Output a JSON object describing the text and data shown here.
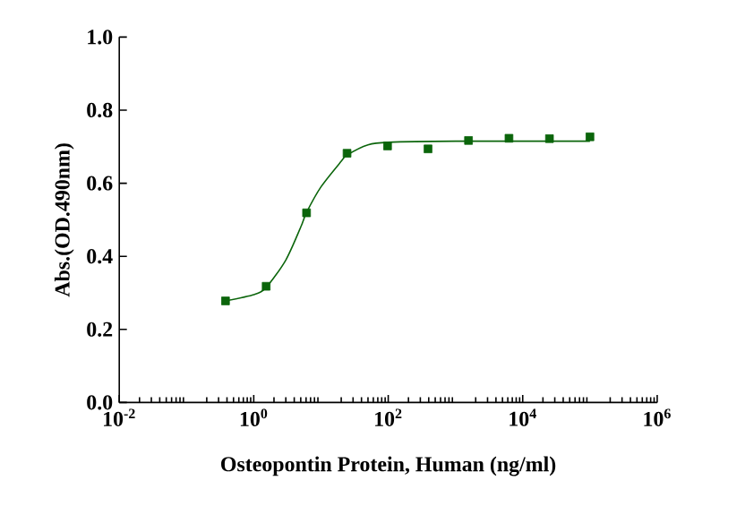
{
  "chart_data": {
    "type": "scatter",
    "xlabel": "Osteopontin Protein, Human (ng/ml)",
    "ylabel": "Abs.(OD.490nm)",
    "log": "x",
    "xlim": [
      0.01,
      1000000
    ],
    "ylim": [
      0,
      1.0
    ],
    "xticks": [
      {
        "value": 0.01,
        "label": "10$^{-2}$"
      },
      {
        "value": 1,
        "label": "10$^{0}$"
      },
      {
        "value": 100,
        "label": "10$^{2}$"
      },
      {
        "value": 10000,
        "label": "10$^{4}$"
      },
      {
        "value": 1000000,
        "label": "10$^{6}$"
      }
    ],
    "yticks": [
      {
        "value": 0,
        "label": "0.0"
      },
      {
        "value": 0.2,
        "label": "0.2"
      },
      {
        "value": 0.4,
        "label": "0.4"
      },
      {
        "value": 0.6,
        "label": "0.6"
      },
      {
        "value": 0.8,
        "label": "0.8"
      },
      {
        "value": 1.0,
        "label": "1.0"
      }
    ],
    "series": [
      {
        "marker": "square",
        "color": "#0b650b",
        "x": [
          0.38,
          1.53,
          6.1,
          24.4,
          97.7,
          390.6,
          1562.5,
          6250,
          25000,
          100000
        ],
        "values": [
          0.278,
          0.318,
          0.519,
          0.682,
          0.702,
          0.694,
          0.717,
          0.723,
          0.722,
          0.727
        ]
      },
      {
        "type": "line",
        "marker": "none",
        "line_style": "solid",
        "color": "#0b650b",
        "x": [
          0.38,
          1,
          1.53,
          3,
          5,
          6.1,
          10,
          20,
          24.4,
          50,
          100,
          1000,
          100000
        ],
        "values": [
          0.278,
          0.295,
          0.315,
          0.39,
          0.48,
          0.52,
          0.59,
          0.66,
          0.677,
          0.705,
          0.712,
          0.715,
          0.715
        ]
      }
    ]
  }
}
